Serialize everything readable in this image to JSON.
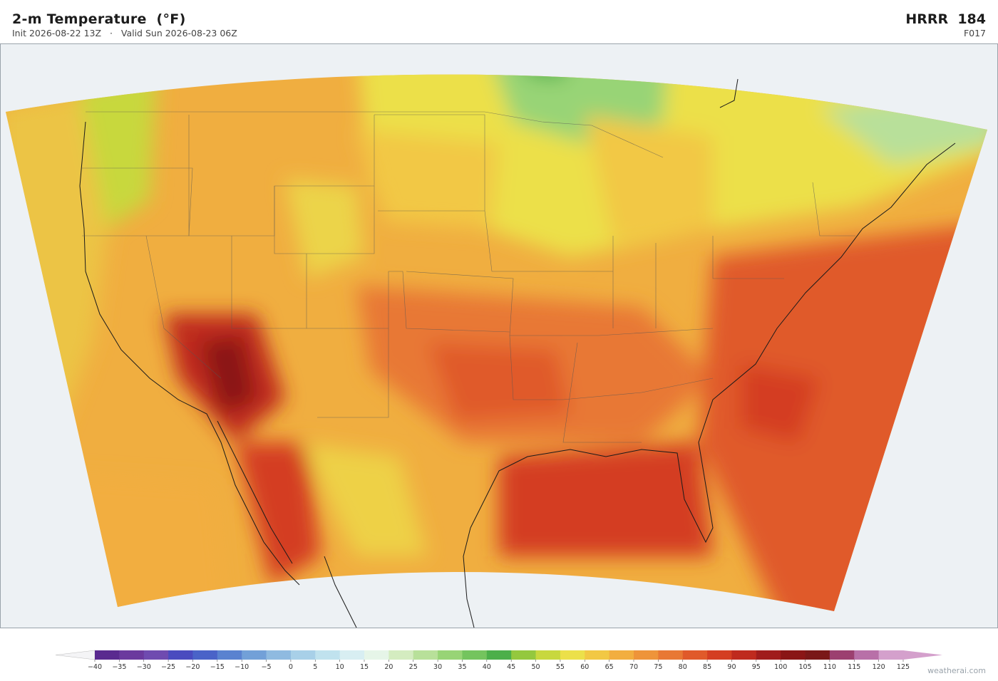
{
  "header": {
    "title": "2-m Temperature  (°F)",
    "init": "Init 2026-08-22 13Z",
    "valid": "Valid Sun 2026-08-23 06Z",
    "model": "HRRR  184",
    "forecast_hour": "F017"
  },
  "colorbar": {
    "ticks": [
      {
        "value": -40,
        "label": "−40"
      },
      {
        "value": -35,
        "label": "−35"
      },
      {
        "value": -30,
        "label": "−30"
      },
      {
        "value": -25,
        "label": "−25"
      },
      {
        "value": -20,
        "label": "−20"
      },
      {
        "value": -15,
        "label": "−15"
      },
      {
        "value": -10,
        "label": "−10"
      },
      {
        "value": -5,
        "label": "−5"
      },
      0,
      5,
      10,
      15,
      20,
      25,
      30,
      35,
      40,
      45,
      50,
      55,
      60,
      65,
      70,
      75,
      80,
      85,
      90,
      95,
      100,
      105,
      110,
      115,
      120,
      125
    ],
    "colors": [
      "#5a2a8f",
      "#6b3a9e",
      "#6f4bb0",
      "#4a4bbf",
      "#4a63c8",
      "#5a82d0",
      "#72a0d8",
      "#8fbae0",
      "#a8d0e8",
      "#c0e2ee",
      "#d8eef2",
      "#e6f5e8",
      "#d4ecc0",
      "#b8e09a",
      "#98d476",
      "#74c45e",
      "#4caf4a",
      "#94c83e",
      "#c8d83e",
      "#ece04a",
      "#f2c844",
      "#f2ae40",
      "#ee943a",
      "#e87834",
      "#e05a2a",
      "#d43e22",
      "#bf2a1e",
      "#a01c1c",
      "#8a1616",
      "#7a1818",
      "#9c4070",
      "#b870a8",
      "#d4a0cc"
    ],
    "under_color": "#f4f4f6",
    "over_color": "#d4a0cc"
  },
  "footer": {
    "watermark": "weatherai.com"
  }
}
